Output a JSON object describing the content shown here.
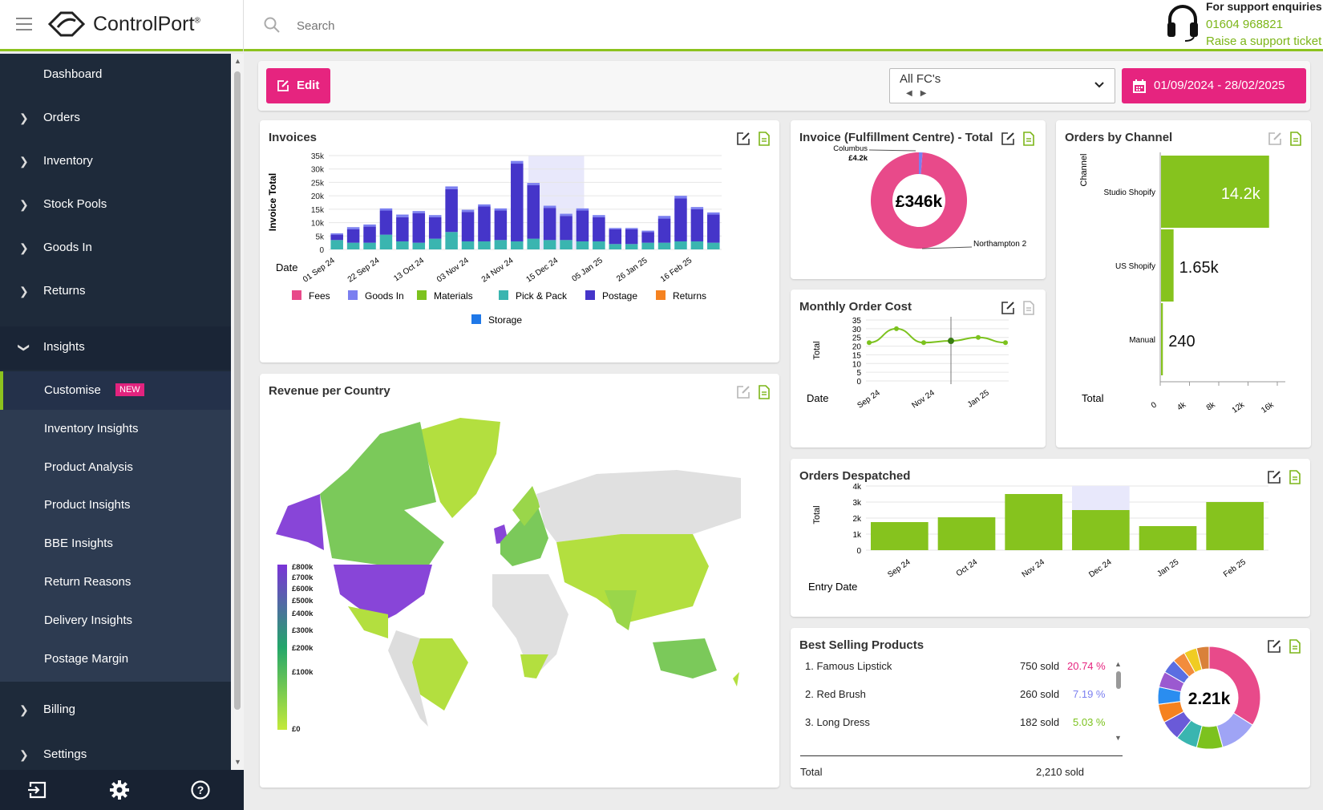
{
  "app": {
    "name": "ControlPort",
    "trademark": "®"
  },
  "search": {
    "placeholder": "Search"
  },
  "support": {
    "title": "For support enquiries",
    "phone": "01604 968821",
    "ticket": "Raise a support ticket"
  },
  "sidebar": {
    "items": [
      {
        "label": "Dashboard"
      },
      {
        "label": "Orders"
      },
      {
        "label": "Inventory"
      },
      {
        "label": "Stock Pools"
      },
      {
        "label": "Goods In"
      },
      {
        "label": "Returns"
      },
      {
        "label": "Insights"
      }
    ],
    "insights_sub": [
      {
        "label": "Customise",
        "badge": "NEW"
      },
      {
        "label": "Inventory Insights"
      },
      {
        "label": "Product Analysis"
      },
      {
        "label": "Product Insights"
      },
      {
        "label": "BBE Insights"
      },
      {
        "label": "Return Reasons"
      },
      {
        "label": "Delivery Insights"
      },
      {
        "label": "Postage Margin"
      }
    ],
    "bottom_items": [
      {
        "label": "Billing"
      },
      {
        "label": "Settings"
      }
    ]
  },
  "footer_icons": [
    "logout-icon",
    "gear-icon",
    "help-icon"
  ],
  "toolbar": {
    "edit_label": "Edit",
    "fc_value": "All FC's",
    "date_range": "01/09/2024 - 28/02/2025"
  },
  "colors": {
    "brand_pink": "#e6247f",
    "brand_green": "#8cc21e",
    "sidebar_bg": "#1e2a3a"
  },
  "cards": {
    "invoices": {
      "title": "Invoices"
    },
    "invoice_fc": {
      "title": "Invoice (Fulfillment Centre) - Total"
    },
    "orders_channel": {
      "title": "Orders by Channel"
    },
    "monthly_cost": {
      "title": "Monthly Order Cost"
    },
    "orders_despatched": {
      "title": "Orders Despatched"
    },
    "revenue_country": {
      "title": "Revenue per Country"
    },
    "best_selling": {
      "title": "Best Selling Products",
      "products": [
        {
          "name": "1. Famous Lipstick",
          "sold": "750 sold",
          "pct": "20.74 %"
        },
        {
          "name": "2. Red Brush",
          "sold": "260 sold",
          "pct": "7.19 %"
        },
        {
          "name": "3. Long Dress",
          "sold": "182 sold",
          "pct": "5.03 %"
        }
      ],
      "total_label": "Total",
      "total_value": "2,210 sold",
      "center": "2.21k"
    }
  },
  "chart_data": [
    {
      "type": "bar",
      "title": "Invoices",
      "ylabel": "Invoice Total",
      "xlabel": "Date",
      "stacked": true,
      "ylim": [
        0,
        35000
      ],
      "yticks": [
        "0",
        "5k",
        "10k",
        "15k",
        "20k",
        "25k",
        "30k",
        "35k"
      ],
      "xticks": [
        "01 Sep 24",
        "22 Sep 24",
        "13 Oct 24",
        "03 Nov 24",
        "24 Nov 24",
        "15 Dec 24",
        "05 Jan 25",
        "26 Jan 25",
        "16 Feb 25"
      ],
      "legend": [
        "Fees",
        "Goods In",
        "Materials",
        "Pick & Pack",
        "Postage",
        "Returns",
        "Storage"
      ],
      "legend_colors": [
        "#e84a8a",
        "#7b7ff0",
        "#7cc21e",
        "#3ab5b0",
        "#4535c9",
        "#f58220",
        "#1f78e8"
      ],
      "series": [
        {
          "name": "Pick & Pack",
          "values": [
            3500,
            2500,
            2500,
            5500,
            3000,
            2500,
            4000,
            6500,
            3000,
            3000,
            3500,
            3000,
            4000,
            3500,
            3500,
            3000,
            3000,
            2000,
            2000,
            2500,
            2500,
            3000,
            3000,
            2500
          ]
        },
        {
          "name": "Postage",
          "values": [
            2000,
            5000,
            6000,
            9000,
            9000,
            11000,
            8000,
            16000,
            11000,
            13000,
            11000,
            29000,
            20000,
            12000,
            9000,
            11500,
            9000,
            5500,
            5500,
            4000,
            9000,
            16000,
            12000,
            10500
          ]
        },
        {
          "name": "Goods In",
          "values": [
            500,
            800,
            800,
            800,
            1000,
            800,
            800,
            1000,
            800,
            800,
            800,
            1000,
            800,
            800,
            800,
            800,
            800,
            500,
            500,
            500,
            1000,
            1000,
            800,
            800
          ]
        }
      ],
      "highlight_range": [
        "24 Nov 24",
        "15 Dec 24"
      ]
    },
    {
      "type": "pie",
      "title": "Invoice (Fulfillment Centre) - Total",
      "center_label": "£346k",
      "labels": [
        "Columbus",
        "Northampton 2"
      ],
      "values": [
        4.2,
        341.8
      ],
      "value_labels": [
        "£4.2k",
        ""
      ]
    },
    {
      "type": "bar",
      "title": "Orders by Channel",
      "orientation": "horizontal",
      "ylabel": "Channel",
      "xlabel": "Total",
      "categories": [
        "Studio Shopify",
        "US Shopify",
        "Manual"
      ],
      "values": [
        14200,
        1650,
        240
      ],
      "value_labels": [
        "14.2k",
        "1.65k",
        "240"
      ],
      "xticks": [
        "0",
        "4k",
        "8k",
        "12k",
        "16k"
      ],
      "xlim": [
        0,
        16000
      ]
    },
    {
      "type": "line",
      "title": "Monthly Order Cost",
      "ylabel": "Total",
      "xlabel": "Date",
      "x": [
        "Sep 24",
        "Oct 24",
        "Nov 24",
        "Dec 24",
        "Jan 25",
        "Feb 25"
      ],
      "values": [
        22,
        30,
        22,
        23,
        25,
        22
      ],
      "ylim": [
        0,
        35
      ],
      "yticks": [
        "0",
        "5",
        "10",
        "15",
        "20",
        "25",
        "30",
        "35"
      ],
      "xticks": [
        "Sep 24",
        "Nov 24",
        "Jan 25"
      ]
    },
    {
      "type": "bar",
      "title": "Orders Despatched",
      "ylabel": "Total",
      "xlabel": "Entry Date",
      "categories": [
        "Sep 24",
        "Oct 24",
        "Nov 24",
        "Dec 24",
        "Jan 25",
        "Feb 25"
      ],
      "values": [
        1750,
        2050,
        3500,
        2500,
        1500,
        3000
      ],
      "ylim": [
        0,
        4000
      ],
      "yticks": [
        "0",
        "1k",
        "2k",
        "3k",
        "4k"
      ]
    },
    {
      "type": "pie",
      "title": "Best Selling Products",
      "center_label": "2.21k",
      "values": [
        750,
        260,
        182,
        150,
        140,
        130,
        120,
        110,
        100,
        90,
        90,
        88
      ],
      "colors": [
        "#e84a8a",
        "#9fa4f5",
        "#7cc21e",
        "#3ab5b0",
        "#6a5ad8",
        "#f58220",
        "#2a8df0",
        "#9b59d0",
        "#5b6ee1",
        "#f28c3c",
        "#f0cc22",
        "#d9813a"
      ]
    },
    {
      "type": "heatmap",
      "title": "Revenue per Country",
      "legend_ticks": [
        "£800k",
        "£700k",
        "£600k",
        "£500k",
        "£400k",
        "£300k",
        "£200k",
        "£100k",
        "£0"
      ]
    }
  ]
}
